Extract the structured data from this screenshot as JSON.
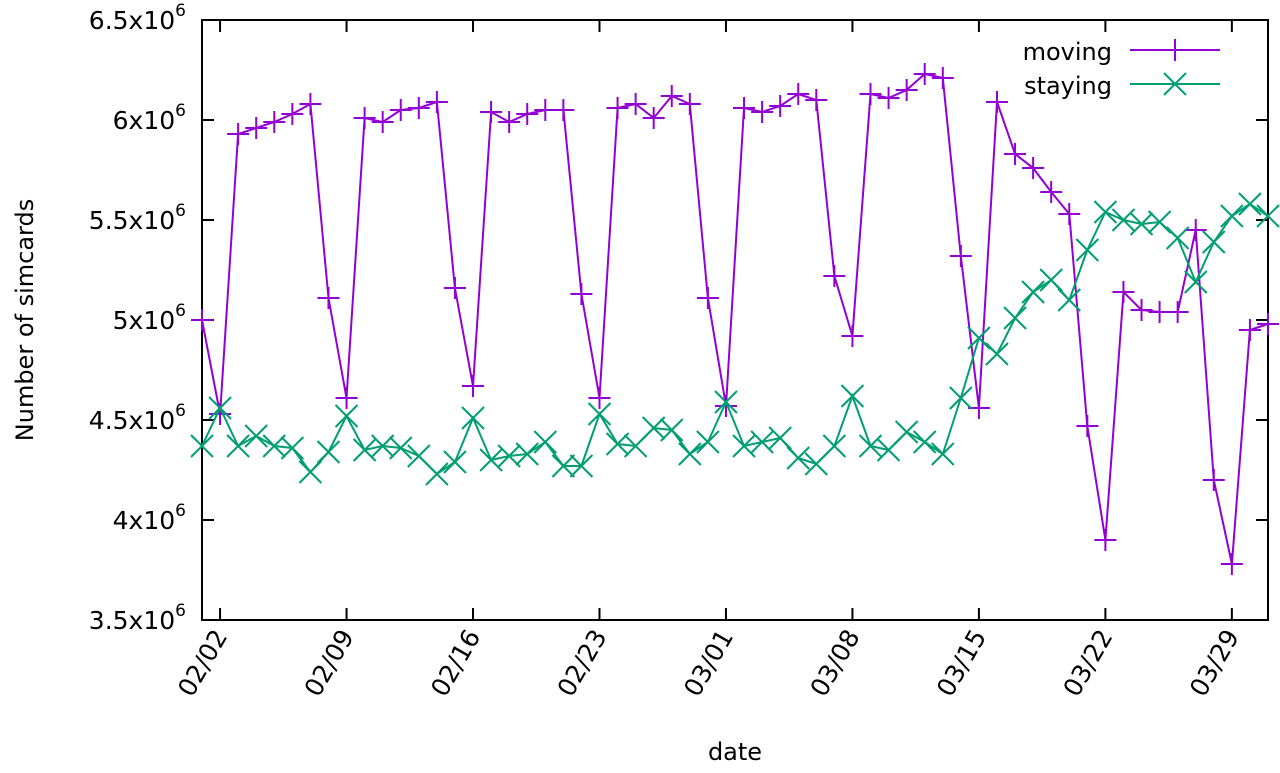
{
  "chart_data": {
    "type": "line",
    "xlabel": "date",
    "ylabel": "Number of simcards",
    "x_start": "2020-02-01",
    "x_ticks": [
      "02/02",
      "02/09",
      "02/16",
      "02/23",
      "03/01",
      "03/08",
      "03/15",
      "03/22",
      "03/29"
    ],
    "x_tick_dates": [
      "2020-02-02",
      "2020-02-09",
      "2020-02-16",
      "2020-02-23",
      "2020-03-01",
      "2020-03-08",
      "2020-03-15",
      "2020-03-22",
      "2020-03-29"
    ],
    "y_ticks": [
      {
        "value": 3500000,
        "mant": "3.5x10",
        "exp": "6"
      },
      {
        "value": 4000000,
        "mant": "4x10",
        "exp": "6"
      },
      {
        "value": 4500000,
        "mant": "4.5x10",
        "exp": "6"
      },
      {
        "value": 5000000,
        "mant": "5x10",
        "exp": "6"
      },
      {
        "value": 5500000,
        "mant": "5.5x10",
        "exp": "6"
      },
      {
        "value": 6000000,
        "mant": "6x10",
        "exp": "6"
      },
      {
        "value": 6500000,
        "mant": "6.5x10",
        "exp": "6"
      }
    ],
    "ylim": [
      3500000,
      6500000
    ],
    "xlim": [
      "2020-02-01",
      "2020-03-31"
    ],
    "grid": false,
    "legend_position": "top-right",
    "series": [
      {
        "name": "moving",
        "color": "#9400d3",
        "marker": "plus",
        "values": [
          5000000,
          4530000,
          5930000,
          5960000,
          5990000,
          6030000,
          6080000,
          5110000,
          4610000,
          6010000,
          5990000,
          6050000,
          6060000,
          6090000,
          5160000,
          4670000,
          6040000,
          5990000,
          6030000,
          6050000,
          6050000,
          5130000,
          4610000,
          6060000,
          6080000,
          6010000,
          6120000,
          6080000,
          5110000,
          4570000,
          6060000,
          6040000,
          6070000,
          6130000,
          6100000,
          5220000,
          4920000,
          6130000,
          6110000,
          6150000,
          6230000,
          6210000,
          5320000,
          4560000,
          6090000,
          5830000,
          5760000,
          5640000,
          5530000,
          4470000,
          3900000,
          5140000,
          5050000,
          5040000,
          5040000,
          5450000,
          4200000,
          3780000,
          4950000,
          4980000
        ]
      },
      {
        "name": "staying",
        "color": "#009e73",
        "marker": "cross",
        "values": [
          4370000,
          4560000,
          4370000,
          4420000,
          4370000,
          4360000,
          4240000,
          4340000,
          4520000,
          4350000,
          4370000,
          4360000,
          4320000,
          4230000,
          4290000,
          4510000,
          4300000,
          4320000,
          4330000,
          4390000,
          4270000,
          4270000,
          4530000,
          4380000,
          4370000,
          4460000,
          4450000,
          4330000,
          4390000,
          4590000,
          4370000,
          4390000,
          4410000,
          4310000,
          4280000,
          4370000,
          4620000,
          4370000,
          4350000,
          4440000,
          4390000,
          4330000,
          4610000,
          4910000,
          4830000,
          5010000,
          5140000,
          5200000,
          5100000,
          5350000,
          5540000,
          5500000,
          5480000,
          5490000,
          5410000,
          5190000,
          5390000,
          5520000,
          5580000,
          5520000
        ]
      }
    ]
  }
}
